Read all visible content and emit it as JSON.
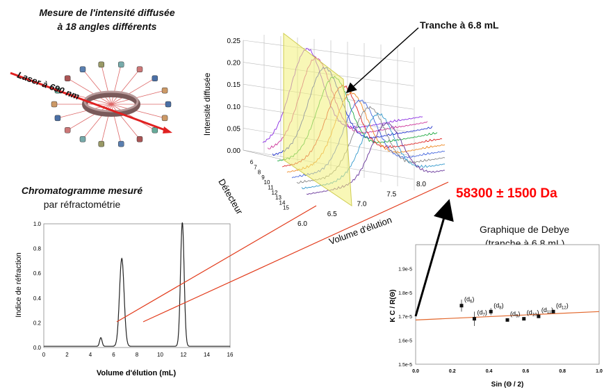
{
  "colors": {
    "arrow_red": "#e23a1a",
    "slice_yellow": "#f2f07a",
    "result_red": "#ff0000",
    "laser": "#e02020"
  },
  "diagram": {
    "title_measure_line1": "Mesure de l'intensité diffusée",
    "title_measure_line2": "à 18 angles différents",
    "laser_label": "Laser à 690 nm",
    "slice_callout": "Tranche à 6.8 mL",
    "chromatogram_title_line1": "Chromatogramme mesuré",
    "chromatogram_title_line2": "par réfractométrie",
    "result": "58300 ± 1500 Da",
    "debye_title_line1": "Graphique de Debye",
    "debye_title_line2": "(tranche à 6.8 mL)"
  },
  "chart_data": [
    {
      "type": "line",
      "name": "3d-light-scattering",
      "zlabel": "Intensité diffusée",
      "xlabel": "Volume d'élution",
      "ylabel": "Détecteur",
      "z_ticks": [
        "0.00",
        "0.05",
        "0.10",
        "0.15",
        "0.20",
        "0.25"
      ],
      "x_ticks": [
        "6.0",
        "6.5",
        "7.0",
        "7.5",
        "8.0"
      ],
      "detector_ticks": [
        "6",
        "7",
        "8",
        "9",
        "10",
        "11",
        "12",
        "13",
        "14",
        "15"
      ],
      "x_range": [
        6.0,
        8.0
      ],
      "z_range": [
        0.0,
        0.25
      ],
      "slice_at": 6.8,
      "series": [
        {
          "detector": 6,
          "peak": 0.2,
          "color": "#8a2be2"
        },
        {
          "detector": 7,
          "peak": 0.19,
          "color": "#cc3399"
        },
        {
          "detector": 8,
          "peak": 0.18,
          "color": "#2233cc"
        },
        {
          "detector": 9,
          "peak": 0.17,
          "color": "#22aa44"
        },
        {
          "detector": 10,
          "peak": 0.16,
          "color": "#dd2222"
        },
        {
          "detector": 11,
          "peak": 0.155,
          "color": "#ee8822"
        },
        {
          "detector": 12,
          "peak": 0.15,
          "color": "#4466dd"
        },
        {
          "detector": 13,
          "peak": 0.145,
          "color": "#888888"
        },
        {
          "detector": 14,
          "peak": 0.14,
          "color": "#3399cc"
        },
        {
          "detector": 15,
          "peak": 0.13,
          "color": "#663399"
        }
      ]
    },
    {
      "type": "line",
      "name": "chromatogram",
      "xlabel": "Volume d'élution (mL)",
      "ylabel": "Indice de réfraction",
      "xlim": [
        0,
        16
      ],
      "ylim": [
        0.0,
        1.0
      ],
      "x_ticks": [
        "0",
        "2",
        "4",
        "6",
        "8",
        "10",
        "12",
        "14",
        "16"
      ],
      "y_ticks": [
        "0.0",
        "0.2",
        "0.4",
        "0.6",
        "0.8",
        "1.0"
      ],
      "peaks": [
        {
          "x": 4.9,
          "height": 0.07,
          "width": 0.15
        },
        {
          "x": 6.7,
          "height": 0.71,
          "width": 0.28
        },
        {
          "x": 11.9,
          "height": 1.0,
          "width": 0.22
        }
      ]
    },
    {
      "type": "scatter",
      "name": "debye-plot",
      "xlabel": "Sin (Θ / 2)",
      "ylabel": "K C / R(Θ)",
      "xlim": [
        0.0,
        1.0
      ],
      "ylim": [
        1.5e-05,
        2e-05
      ],
      "x_ticks": [
        "0.0",
        "0.2",
        "0.4",
        "0.6",
        "0.8",
        "1.0"
      ],
      "y_ticks": [
        "1.5e-5",
        "1.6e-5",
        "1.7e-5",
        "1.8e-5",
        "1.9e-5"
      ],
      "fit": {
        "intercept": 1.685e-05,
        "slope": 3.5e-07
      },
      "points": [
        {
          "label": "d6",
          "x": 0.25,
          "y": 1.745e-05,
          "err": 2.5e-07
        },
        {
          "label": "d7",
          "x": 0.32,
          "y": 1.69e-05,
          "err": 3e-07
        },
        {
          "label": "d8",
          "x": 0.41,
          "y": 1.72e-05,
          "err": 1.5e-07
        },
        {
          "label": "d9",
          "x": 0.5,
          "y": 1.685e-05,
          "err": 0.0
        },
        {
          "label": "d10",
          "x": 0.59,
          "y": 1.69e-05,
          "err": 0.0
        },
        {
          "label": "d11",
          "x": 0.67,
          "y": 1.7e-05,
          "err": 0.0
        },
        {
          "label": "d12",
          "x": 0.75,
          "y": 1.72e-05,
          "err": 0.0
        }
      ]
    }
  ]
}
